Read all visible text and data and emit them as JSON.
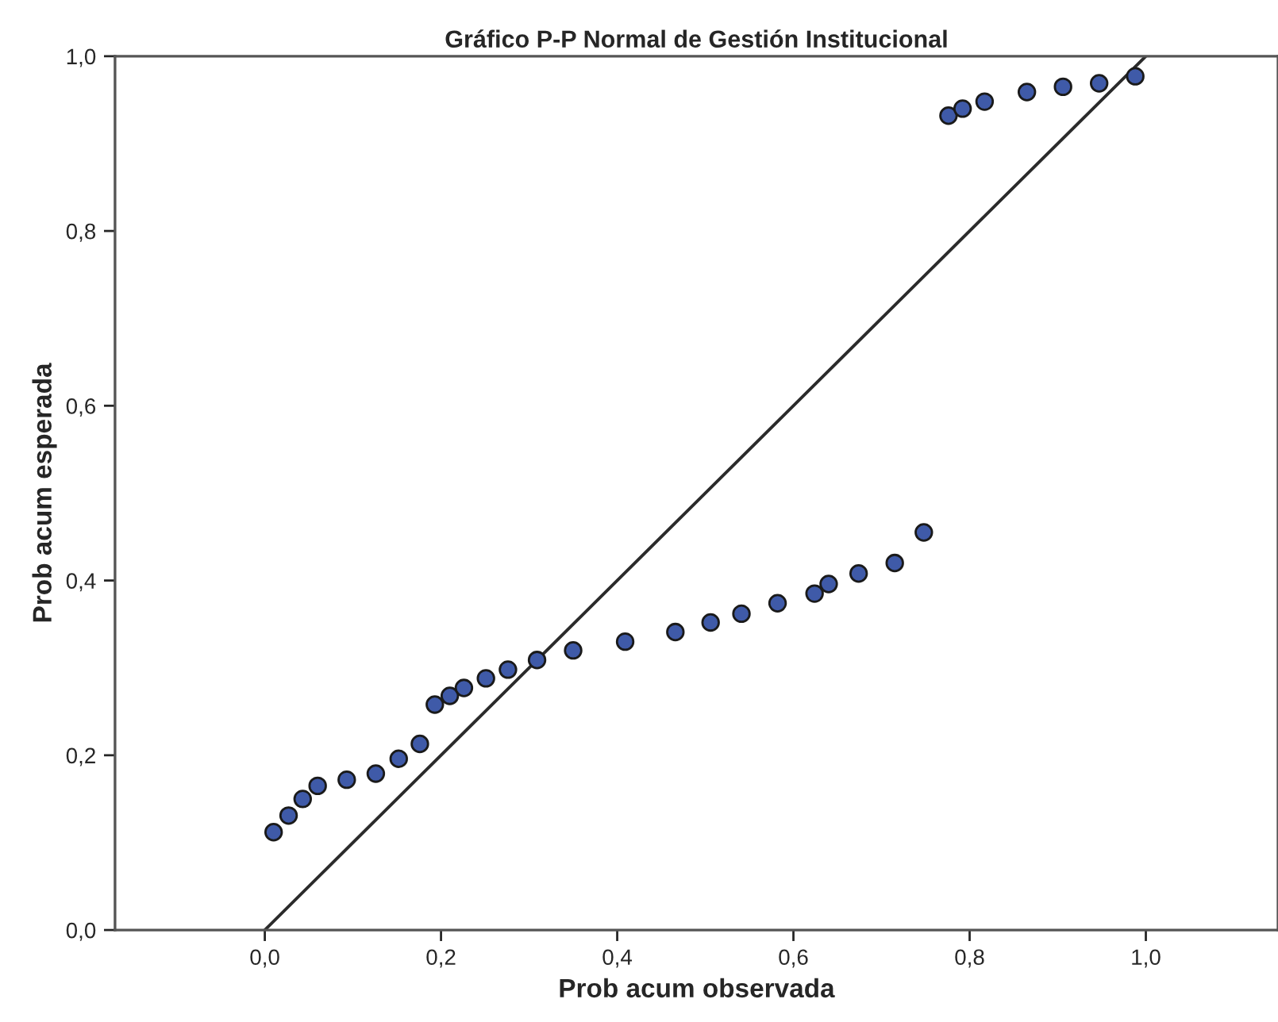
{
  "chart_data": {
    "type": "scatter",
    "title": "Gráfico P-P Normal de Gestión Institucional",
    "xlabel": "Prob acum observada",
    "ylabel": "Prob acum esperada",
    "series": [
      {
        "color": "#3f5aa8",
        "x": [
          0.01,
          0.027,
          0.043,
          0.06,
          0.093,
          0.126,
          0.152,
          0.176,
          0.193,
          0.21,
          0.226,
          0.251,
          0.276,
          0.309,
          0.35,
          0.409,
          0.466,
          0.506,
          0.541,
          0.582,
          0.624,
          0.64,
          0.674,
          0.715,
          0.748,
          0.776,
          0.792,
          0.817,
          0.865,
          0.906,
          0.947,
          0.988
        ],
        "values": [
          0.112,
          0.131,
          0.15,
          0.165,
          0.172,
          0.179,
          0.196,
          0.213,
          0.258,
          0.268,
          0.277,
          0.288,
          0.298,
          0.309,
          0.32,
          0.33,
          0.341,
          0.352,
          0.362,
          0.374,
          0.385,
          0.396,
          0.408,
          0.42,
          0.455,
          0.932,
          0.94,
          0.948,
          0.959,
          0.965,
          0.969,
          0.977
        ]
      },
      {
        "type": "line",
        "color": "#2b2b2b",
        "marker": "none",
        "x": [
          0,
          1
        ],
        "values": [
          0,
          1
        ]
      }
    ],
    "xlim": [
      -0.17,
      1.15
    ],
    "ylim": [
      0,
      1
    ],
    "xticks": [
      {
        "value": 0,
        "label": "0,0"
      },
      {
        "value": 0.2,
        "label": "0,2"
      },
      {
        "value": 0.4,
        "label": "0,4"
      },
      {
        "value": 0.6,
        "label": "0,6"
      },
      {
        "value": 0.8,
        "label": "0,8"
      },
      {
        "value": 1.0,
        "label": "1,0"
      }
    ],
    "yticks": [
      {
        "value": 0,
        "label": "0,0"
      },
      {
        "value": 0.2,
        "label": "0,2"
      },
      {
        "value": 0.4,
        "label": "0,4"
      },
      {
        "value": 0.6,
        "label": "0,6"
      },
      {
        "value": 0.8,
        "label": "0,8"
      },
      {
        "value": 1.0,
        "label": "1,0"
      }
    ],
    "marker": "circle",
    "grid": false,
    "legend": false
  }
}
